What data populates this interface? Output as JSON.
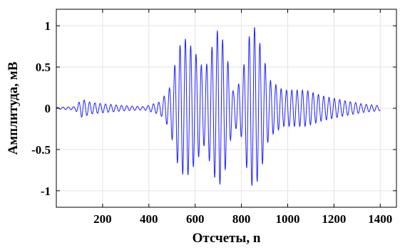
{
  "chart_data": {
    "type": "line",
    "title": "",
    "xlabel": "Отсчеты, n",
    "ylabel": "Амплитуда, мВ",
    "xlim": [
      0,
      1470
    ],
    "ylim": [
      -1.2,
      1.2
    ],
    "grid": true,
    "x_ticks": [
      200,
      400,
      600,
      800,
      1000,
      1200,
      1400
    ],
    "x_tick_labels": [
      "200",
      "400",
      "600",
      "800",
      "1000",
      "1200",
      "1400"
    ],
    "y_ticks": [
      1,
      0.5,
      0,
      -0.5,
      -1
    ],
    "y_tick_labels": [
      "1",
      "0.5",
      "0",
      "-0.5",
      "-1"
    ],
    "series": [
      {
        "color": "#1f1fff",
        "signal": {
          "x_start": 1,
          "x_end": 1400,
          "envelope_points": [
            {
              "n": 1,
              "amp": 0.01
            },
            {
              "n": 80,
              "amp": 0.02
            },
            {
              "n": 110,
              "amp": 0.11
            },
            {
              "n": 150,
              "amp": 0.07
            },
            {
              "n": 220,
              "amp": 0.05
            },
            {
              "n": 300,
              "amp": 0.03
            },
            {
              "n": 380,
              "amp": 0.02
            },
            {
              "n": 450,
              "amp": 0.08
            },
            {
              "n": 490,
              "amp": 0.25
            },
            {
              "n": 530,
              "amp": 0.75
            },
            {
              "n": 560,
              "amp": 0.85
            },
            {
              "n": 600,
              "amp": 0.68
            },
            {
              "n": 640,
              "amp": 0.45
            },
            {
              "n": 670,
              "amp": 0.72
            },
            {
              "n": 700,
              "amp": 0.98
            },
            {
              "n": 730,
              "amp": 0.75
            },
            {
              "n": 765,
              "amp": 0.2
            },
            {
              "n": 800,
              "amp": 0.35
            },
            {
              "n": 830,
              "amp": 0.85
            },
            {
              "n": 855,
              "amp": 1.0
            },
            {
              "n": 885,
              "amp": 0.75
            },
            {
              "n": 920,
              "amp": 0.35
            },
            {
              "n": 980,
              "amp": 0.22
            },
            {
              "n": 1080,
              "amp": 0.22
            },
            {
              "n": 1150,
              "amp": 0.15
            },
            {
              "n": 1250,
              "amp": 0.09
            },
            {
              "n": 1330,
              "amp": 0.05
            },
            {
              "n": 1400,
              "amp": 0.03
            }
          ],
          "period_samples": 23
        }
      }
    ]
  }
}
